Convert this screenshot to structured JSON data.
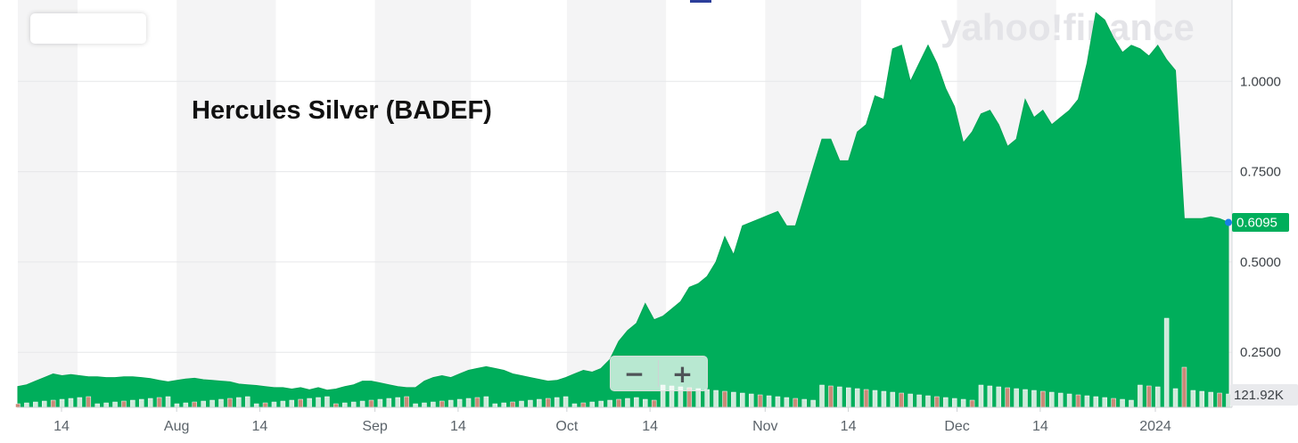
{
  "header": {
    "range_box_text": ""
  },
  "watermark": "yahoo!finance",
  "zoom": {
    "out_label": "−",
    "in_label": "+"
  },
  "chart_data": {
    "type": "area",
    "title": "Hercules Silver (BADEF)",
    "x_tick_labels": [
      "14",
      "Aug",
      "14",
      "Sep",
      "14",
      "Oct",
      "14",
      "Nov",
      "14",
      "Dec",
      "14",
      "2024"
    ],
    "x_tick_dates": [
      "2023-07-14",
      "2023-08-01",
      "2023-08-14",
      "2023-09-01",
      "2023-09-14",
      "2023-10-01",
      "2023-10-14",
      "2023-11-01",
      "2023-11-14",
      "2023-12-01",
      "2023-12-14",
      "2024-01-01"
    ],
    "y_ticks": [
      "0.2500",
      "0.5000",
      "0.7500",
      "1.0000"
    ],
    "ylim": [
      0.1,
      1.2
    ],
    "grid": true,
    "last_price": "0.6095",
    "volume_label": "121.92K",
    "series": [
      {
        "values": [
          0.155,
          0.16,
          0.17,
          0.18,
          0.19,
          0.185,
          0.188,
          0.185,
          0.182,
          0.182,
          0.18,
          0.18,
          0.182,
          0.182,
          0.18,
          0.177,
          0.172,
          0.168,
          0.172,
          0.176,
          0.178,
          0.174,
          0.172,
          0.17,
          0.168,
          0.162,
          0.16,
          0.158,
          0.155,
          0.152,
          0.152,
          0.148,
          0.152,
          0.146,
          0.152,
          0.145,
          0.148,
          0.155,
          0.16,
          0.17,
          0.17,
          0.165,
          0.16,
          0.155,
          0.152,
          0.152,
          0.17,
          0.18,
          0.185,
          0.18,
          0.19,
          0.2,
          0.205,
          0.21,
          0.205,
          0.2,
          0.19,
          0.185,
          0.18,
          0.175,
          0.17,
          0.172,
          0.18,
          0.19,
          0.2,
          0.195,
          0.205,
          0.23,
          0.28,
          0.31,
          0.33,
          0.385,
          0.34,
          0.35,
          0.37,
          0.39,
          0.43,
          0.44,
          0.46,
          0.5,
          0.57,
          0.52,
          0.6,
          0.61,
          0.62,
          0.63,
          0.64,
          0.6,
          0.6,
          0.68,
          0.76,
          0.84,
          0.84,
          0.78,
          0.78,
          0.86,
          0.88,
          0.96,
          0.95,
          1.09,
          1.1,
          1.0,
          1.05,
          1.1,
          1.05,
          0.98,
          0.93,
          0.83,
          0.86,
          0.91,
          0.92,
          0.88,
          0.82,
          0.84,
          0.95,
          0.9,
          0.92,
          0.88,
          0.9,
          0.92,
          0.95,
          1.05,
          1.19,
          1.17,
          1.12,
          1.08,
          1.1,
          1.09,
          1.07,
          1.1,
          1.06,
          1.03,
          0.62,
          0.62,
          0.62,
          0.625,
          0.62,
          0.6095
        ]
      }
    ]
  }
}
